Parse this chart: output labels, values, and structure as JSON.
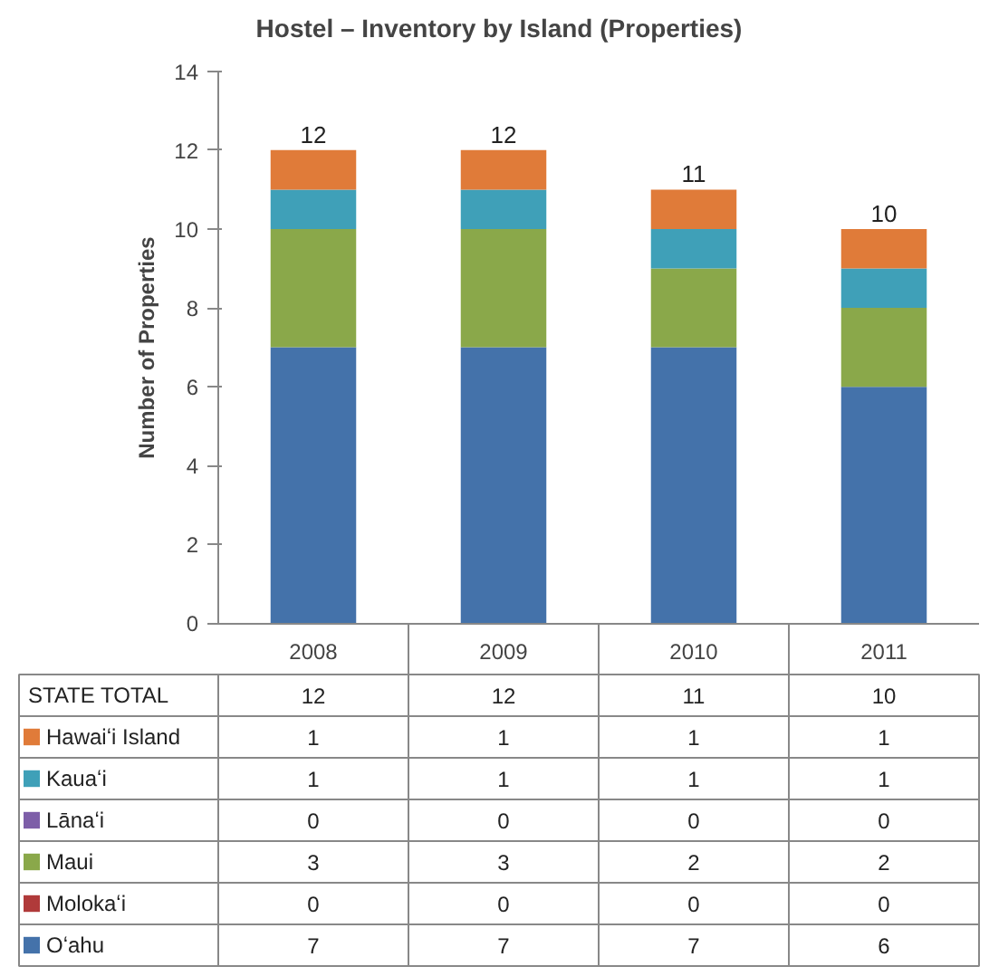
{
  "chart_data": {
    "type": "bar",
    "title": "Hostel – Inventory by Island (Properties)",
    "ylabel": "Number of Properties",
    "categories": [
      "2008",
      "2009",
      "2010",
      "2011"
    ],
    "stacked": true,
    "series": [
      {
        "name": "Oʻahu",
        "color": "#4472aa",
        "values": [
          7,
          7,
          7,
          6
        ],
        "value_labels": [
          "7",
          "7",
          "7",
          "6"
        ]
      },
      {
        "name": "Molokaʻi",
        "color": "#b03a3a",
        "values": [
          0,
          0,
          0,
          0
        ],
        "value_labels": [
          "0",
          "0",
          "0",
          "0"
        ]
      },
      {
        "name": "Maui",
        "color": "#8aa84a",
        "values": [
          3,
          3,
          2,
          2
        ],
        "value_labels": [
          "3",
          "3",
          "2",
          "2"
        ]
      },
      {
        "name": "Lānaʻi",
        "color": "#7d5ea8",
        "values": [
          0,
          0,
          0,
          0
        ],
        "value_labels": [
          "0",
          "0",
          "0",
          "0"
        ]
      },
      {
        "name": "Kauaʻi",
        "color": "#3fa0b8",
        "values": [
          1,
          1,
          1,
          1
        ],
        "value_labels": [
          "1",
          "1",
          "1",
          "1"
        ]
      },
      {
        "name": "Hawaiʻi Island",
        "color": "#e07b39",
        "values": [
          1,
          1,
          1,
          1
        ],
        "value_labels": [
          "1",
          "1",
          "1",
          "1"
        ]
      }
    ],
    "ylim": [
      0,
      14
    ],
    "yticks": [
      0,
      2,
      4,
      6,
      8,
      10,
      12,
      14
    ],
    "grid": false,
    "legend": "bottom left",
    "totals": [
      "12",
      "12",
      "11",
      "10"
    ],
    "annotations": [
      "STATE TOTAL"
    ]
  }
}
